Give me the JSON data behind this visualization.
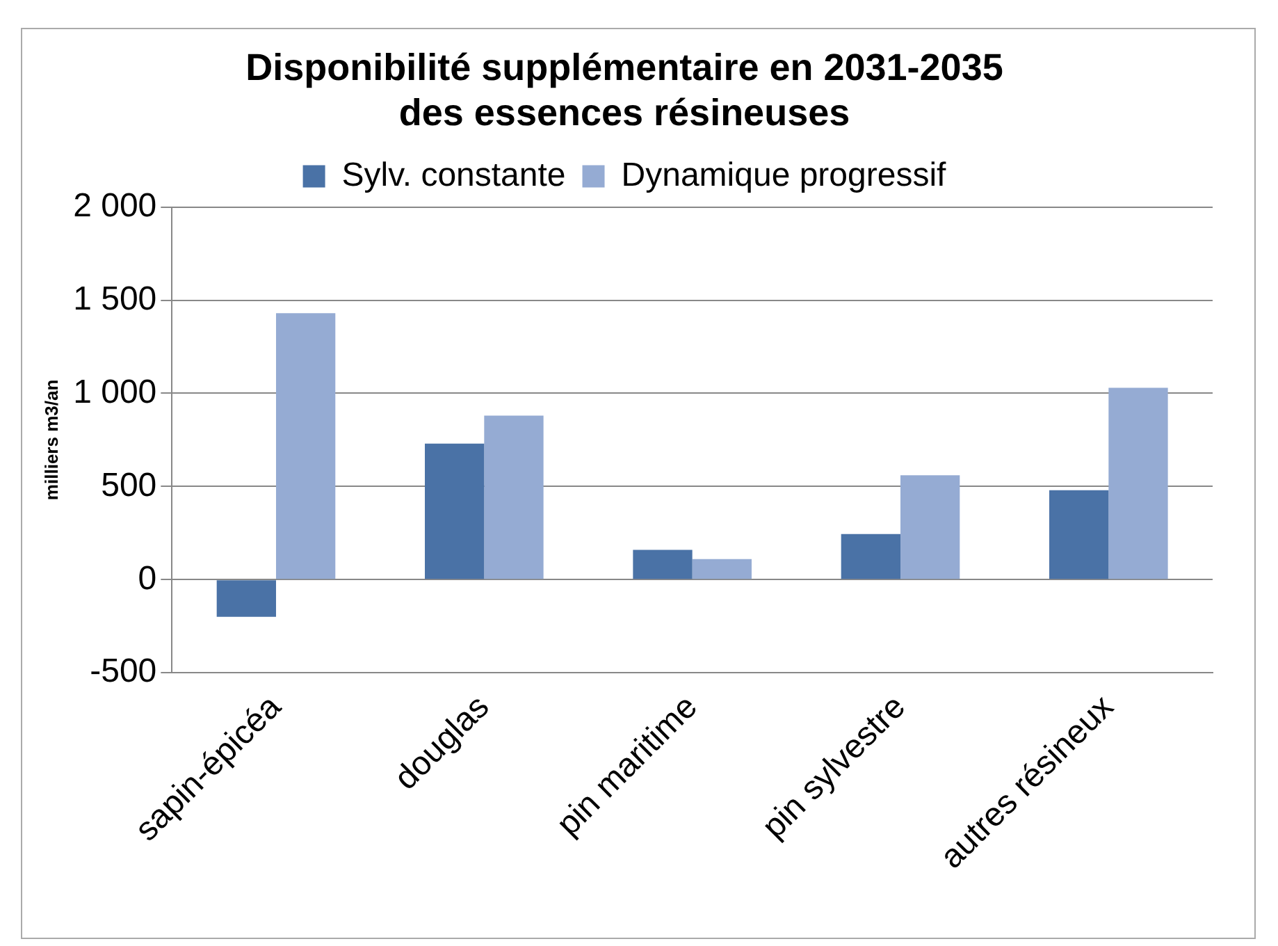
{
  "chart_data": {
    "type": "bar",
    "title": [
      "Disponibilité supplémentaire en 2031-2035",
      "des essences résineuses"
    ],
    "ylabel": "milliers m3/an",
    "categories": [
      "sapin-épicéa",
      "douglas",
      "pin maritime",
      "pin sylvestre",
      "autres résineux"
    ],
    "series": [
      {
        "name": "Sylv. constante",
        "color": "#4a72a6",
        "values": [
          -200,
          730,
          160,
          245,
          480
        ]
      },
      {
        "name": "Dynamique progressif",
        "color": "#95abd3",
        "values": [
          1430,
          880,
          110,
          560,
          1030
        ]
      }
    ],
    "ylim": [
      -500,
      2000
    ],
    "yticks": [
      -500,
      0,
      {
        "value": 500,
        "label": "500"
      },
      {
        "value": 1000,
        "label": "1 000"
      },
      {
        "value": 1500,
        "label": "1 500"
      },
      {
        "value": 2000,
        "label": "2 000"
      }
    ],
    "grid": "y",
    "legend": "top"
  }
}
